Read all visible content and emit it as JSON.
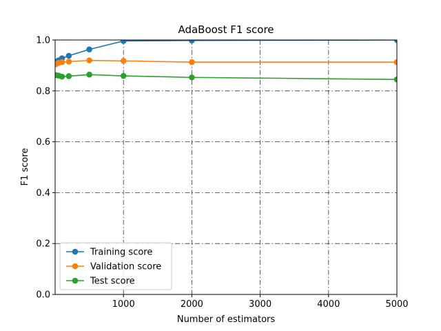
{
  "chart_data": {
    "type": "line",
    "title": "AdaBoost F1 score",
    "xlabel": "Number of estimators",
    "ylabel": "F1 score",
    "xlim": [
      0,
      5000
    ],
    "ylim": [
      0.0,
      1.0
    ],
    "x_ticks": [
      1000,
      2000,
      3000,
      4000,
      5000
    ],
    "y_ticks": [
      0.0,
      0.2,
      0.4,
      0.6,
      0.8,
      1.0
    ],
    "x_tick_labels": [
      "1000",
      "2000",
      "3000",
      "4000",
      "5000"
    ],
    "y_tick_labels": [
      "0.0",
      "0.2",
      "0.4",
      "0.6",
      "0.8",
      "1.0"
    ],
    "grid": true,
    "legend_position": "lower-left",
    "x": [
      10,
      50,
      100,
      200,
      500,
      1000,
      2000,
      5000
    ],
    "series": [
      {
        "name": "Training score",
        "color": "#1f77b4",
        "values": [
          0.915,
          0.92,
          0.928,
          0.938,
          0.963,
          0.996,
          0.998,
          1.0
        ]
      },
      {
        "name": "Validation score",
        "color": "#ff7f0e",
        "values": [
          0.905,
          0.91,
          0.913,
          0.915,
          0.92,
          0.918,
          0.913,
          0.913
        ]
      },
      {
        "name": "Test score",
        "color": "#2ca02c",
        "values": [
          0.862,
          0.86,
          0.856,
          0.858,
          0.864,
          0.859,
          0.853,
          0.845
        ]
      }
    ]
  }
}
